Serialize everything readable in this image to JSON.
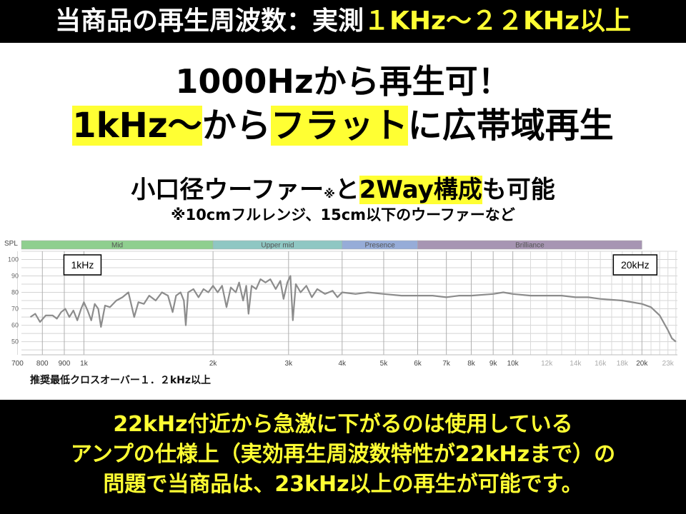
{
  "header": {
    "title_white": "当商品の再生周波数：実測",
    "title_yellow": "１KHz～２２KHz以上"
  },
  "headline": {
    "line1": "1000Hzから再生可！",
    "line2_a": "1kHz～",
    "line2_b": "から",
    "line2_c": "フラット",
    "line2_d": "に広帯域再生"
  },
  "sub": {
    "a": "小口径ウーファー",
    "mark": "※",
    "b": "と",
    "c": "2Way構成",
    "d": "も可能",
    "note": "※10cmフルレンジ、15cm以下のウーファーなど"
  },
  "crossover_note": "推奨最低クロスオーバー１．２kHz以上",
  "footer": {
    "line1": "22kHz付近から急激に下がるのは使用している",
    "line2": "アンプの仕様上（実効再生周波数特性が22kHzまで）の",
    "line3": "問題で当商品は、23kHz以上の再生が可能です。"
  },
  "colors": {
    "highlight": "#ffff33",
    "curve": "#8c8c8c",
    "mid": "#8fcf8f",
    "upper_mid": "#8fc7c3",
    "presence": "#96acd8",
    "brilliance": "#a795b3"
  },
  "chart_data": {
    "type": "line",
    "ylabel": "SPL",
    "xscale": "log",
    "xlim": [
      715,
      24200
    ],
    "ylim": [
      42,
      105
    ],
    "grid": true,
    "yticks": [
      100,
      90,
      80,
      70,
      60,
      50
    ],
    "xticks": [
      {
        "v": 700,
        "l": "700"
      },
      {
        "v": 800,
        "l": "800"
      },
      {
        "v": 900,
        "l": "900"
      },
      {
        "v": 1000,
        "l": "1k"
      },
      {
        "v": 2000,
        "l": "2k"
      },
      {
        "v": 3000,
        "l": "3k"
      },
      {
        "v": 4000,
        "l": "4k"
      },
      {
        "v": 5000,
        "l": "5k"
      },
      {
        "v": 6000,
        "l": "6k"
      },
      {
        "v": 7000,
        "l": "7k"
      },
      {
        "v": 8000,
        "l": "8k"
      },
      {
        "v": 9000,
        "l": "9k"
      },
      {
        "v": 10000,
        "l": "10k"
      },
      {
        "v": 12000,
        "l": "12k"
      },
      {
        "v": 14000,
        "l": "14k"
      },
      {
        "v": 16000,
        "l": "16k"
      },
      {
        "v": 18000,
        "l": "18k"
      },
      {
        "v": 20000,
        "l": "20k"
      },
      {
        "v": 23000,
        "l": "23k"
      }
    ],
    "bands": [
      {
        "name": "Mid",
        "from": 715,
        "to": 2000
      },
      {
        "name": "Upper mid",
        "from": 2000,
        "to": 4000
      },
      {
        "name": "Presence",
        "from": 4000,
        "to": 6000
      },
      {
        "name": "Brilliance",
        "from": 6000,
        "to": 20000
      }
    ],
    "annotations": [
      {
        "text": "1kHz",
        "x": 1000
      },
      {
        "text": "20kHz",
        "x": 20000
      }
    ],
    "points": [
      [
        750,
        65
      ],
      [
        770,
        67
      ],
      [
        790,
        62
      ],
      [
        815,
        66
      ],
      [
        845,
        66
      ],
      [
        865,
        64
      ],
      [
        885,
        68
      ],
      [
        905,
        70
      ],
      [
        925,
        65
      ],
      [
        945,
        69
      ],
      [
        965,
        63
      ],
      [
        985,
        70
      ],
      [
        1000,
        74
      ],
      [
        1020,
        69
      ],
      [
        1040,
        63
      ],
      [
        1060,
        73
      ],
      [
        1080,
        70
      ],
      [
        1096,
        59
      ],
      [
        1120,
        72
      ],
      [
        1150,
        71
      ],
      [
        1190,
        75
      ],
      [
        1230,
        77
      ],
      [
        1270,
        80
      ],
      [
        1310,
        65
      ],
      [
        1340,
        74
      ],
      [
        1380,
        73
      ],
      [
        1420,
        78
      ],
      [
        1470,
        75
      ],
      [
        1520,
        80
      ],
      [
        1570,
        78
      ],
      [
        1610,
        68
      ],
      [
        1640,
        78
      ],
      [
        1680,
        80
      ],
      [
        1710,
        75
      ],
      [
        1728,
        60
      ],
      [
        1750,
        80
      ],
      [
        1800,
        82
      ],
      [
        1850,
        77
      ],
      [
        1900,
        82
      ],
      [
        1950,
        80
      ],
      [
        2000,
        84
      ],
      [
        2050,
        80
      ],
      [
        2100,
        84
      ],
      [
        2150,
        71
      ],
      [
        2200,
        83
      ],
      [
        2260,
        80
      ],
      [
        2300,
        86
      ],
      [
        2350,
        75
      ],
      [
        2390,
        84
      ],
      [
        2420,
        67
      ],
      [
        2460,
        84
      ],
      [
        2520,
        82
      ],
      [
        2580,
        88
      ],
      [
        2650,
        86
      ],
      [
        2720,
        88
      ],
      [
        2800,
        82
      ],
      [
        2870,
        87
      ],
      [
        2920,
        76
      ],
      [
        2980,
        86
      ],
      [
        3030,
        90
      ],
      [
        3070,
        63
      ],
      [
        3120,
        85
      ],
      [
        3200,
        80
      ],
      [
        3300,
        84
      ],
      [
        3400,
        77
      ],
      [
        3500,
        82
      ],
      [
        3650,
        79
      ],
      [
        3800,
        81
      ],
      [
        3900,
        77
      ],
      [
        4000,
        80
      ],
      [
        4300,
        79
      ],
      [
        4600,
        80
      ],
      [
        5000,
        79
      ],
      [
        5500,
        78
      ],
      [
        6000,
        78
      ],
      [
        6500,
        78
      ],
      [
        7000,
        77
      ],
      [
        7500,
        78
      ],
      [
        8000,
        78
      ],
      [
        9000,
        79
      ],
      [
        9500,
        80
      ],
      [
        10000,
        79
      ],
      [
        11000,
        78
      ],
      [
        12000,
        78
      ],
      [
        13000,
        78
      ],
      [
        14000,
        77
      ],
      [
        15000,
        77
      ],
      [
        16000,
        76
      ],
      [
        18000,
        75
      ],
      [
        20000,
        73
      ],
      [
        21000,
        71
      ],
      [
        22000,
        66
      ],
      [
        23000,
        57
      ],
      [
        23500,
        52
      ],
      [
        24000,
        50
      ]
    ]
  }
}
